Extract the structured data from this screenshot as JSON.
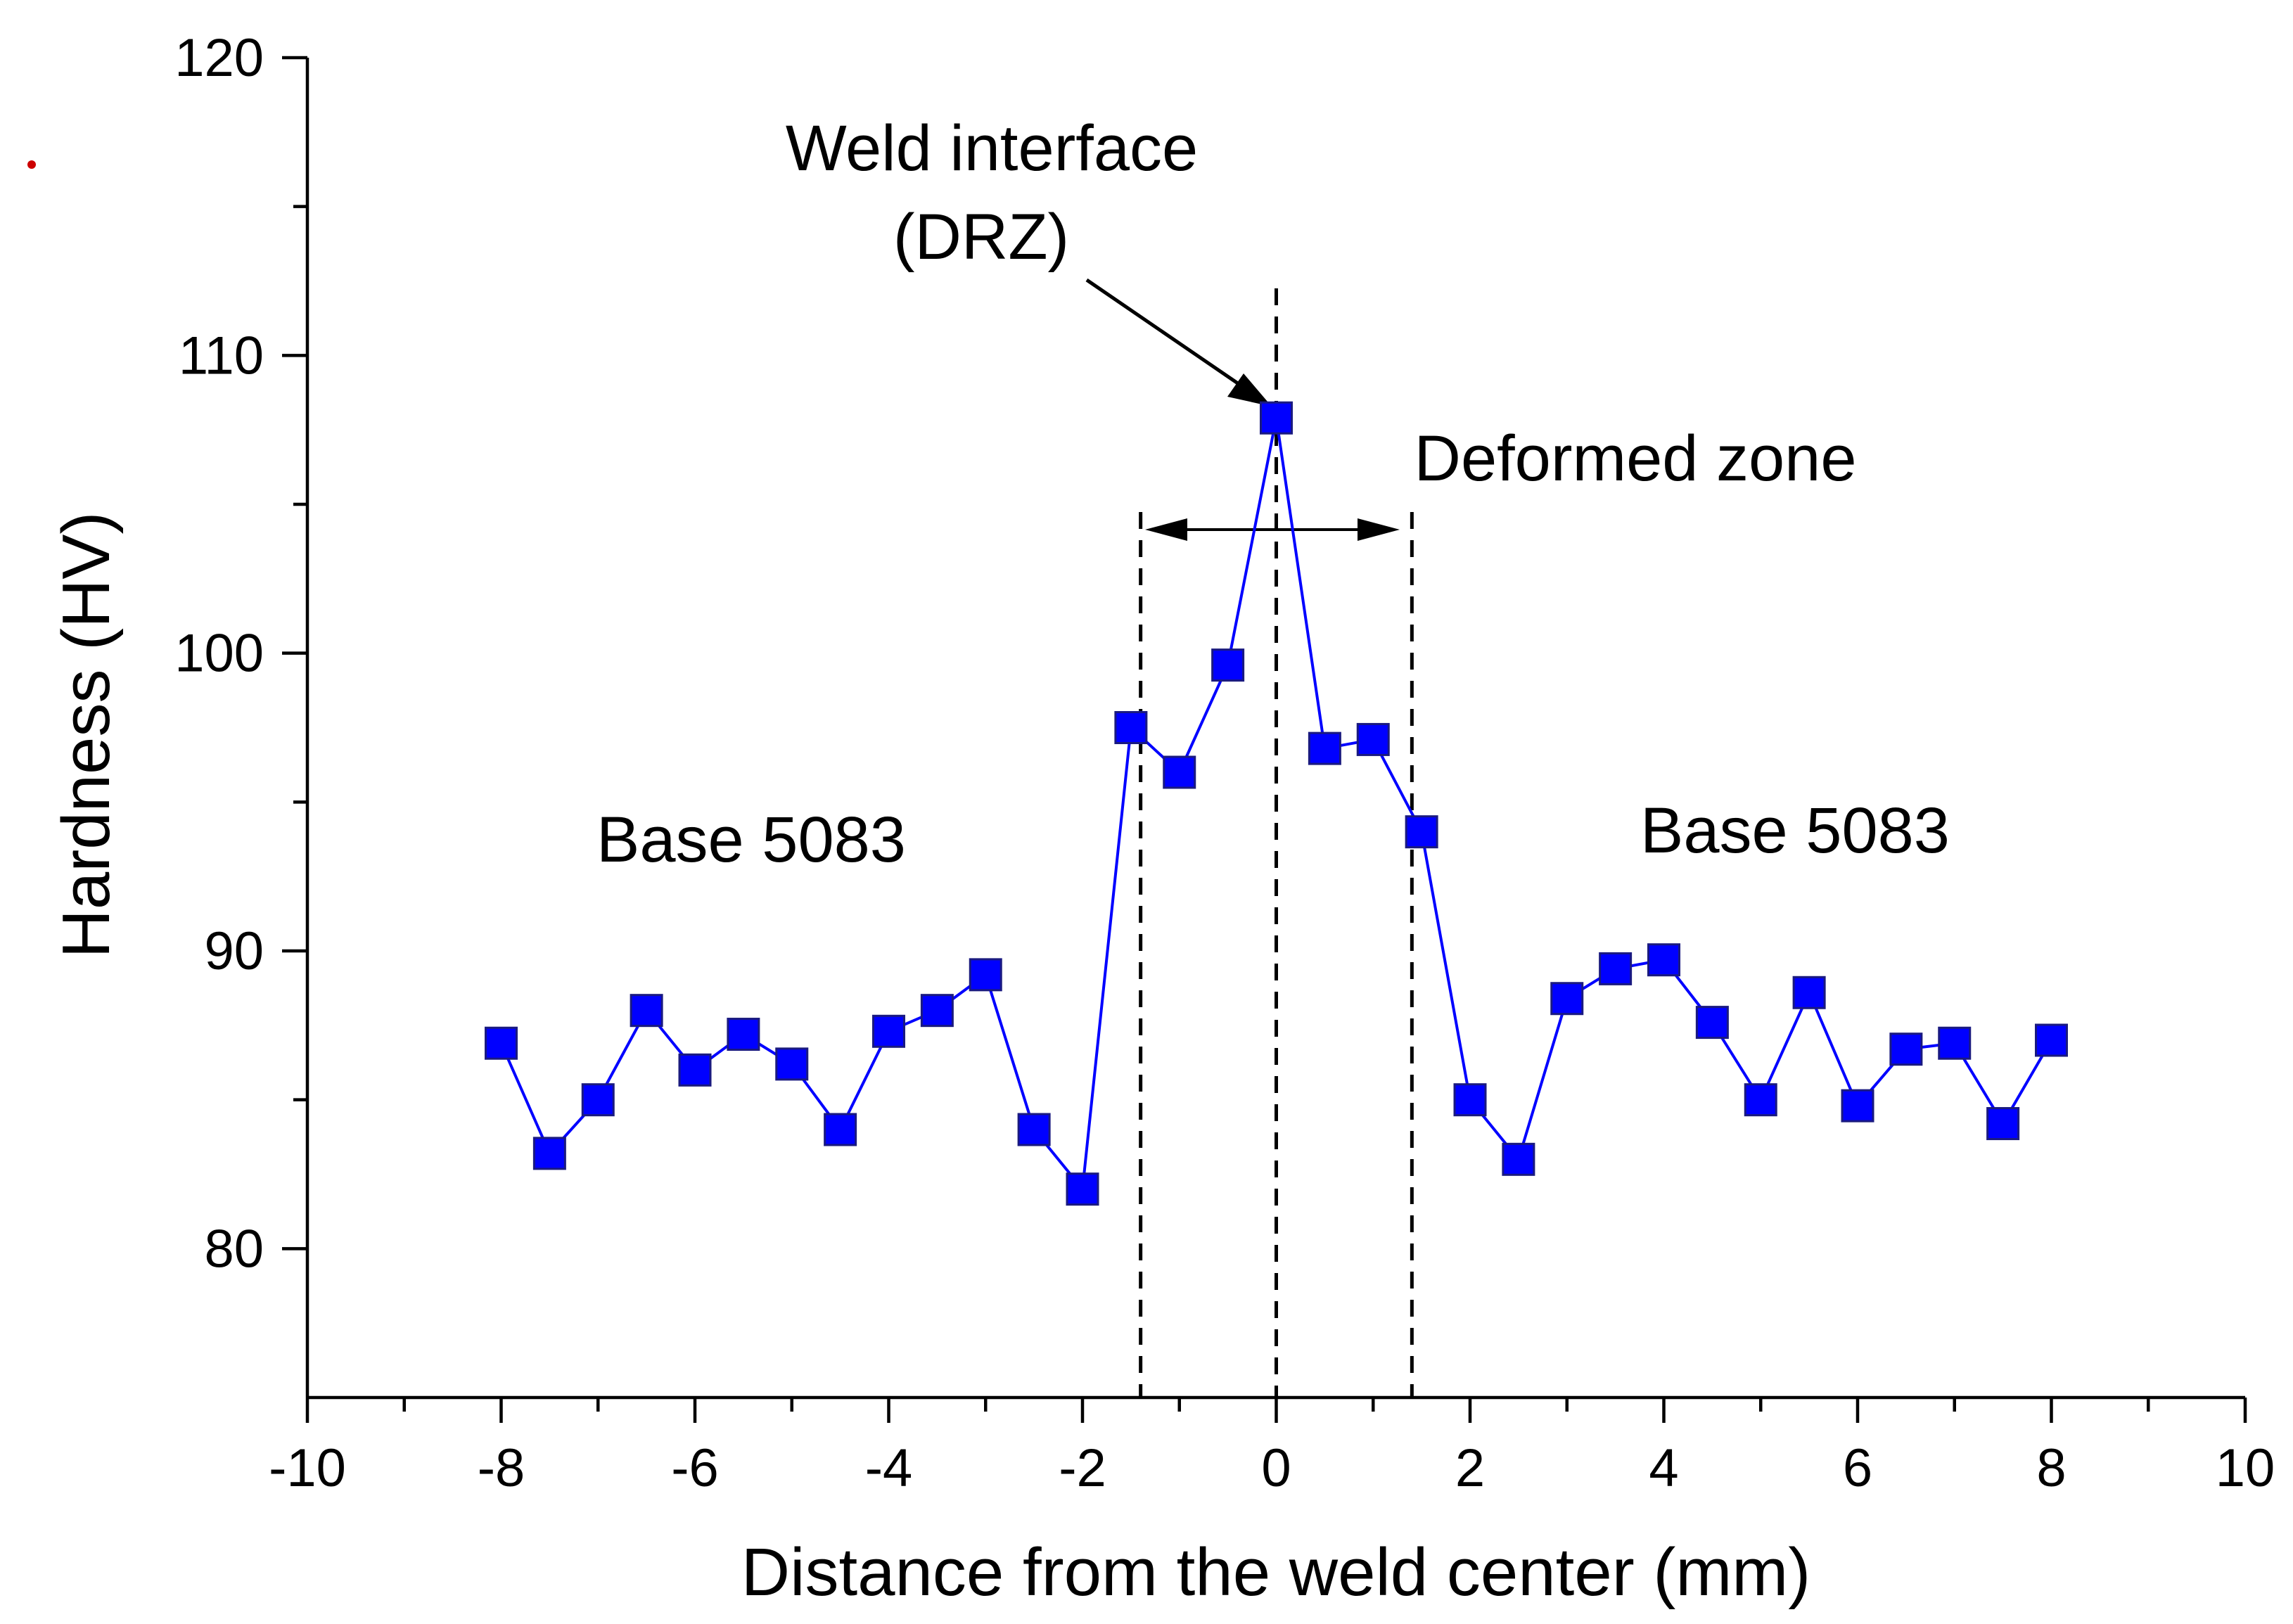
{
  "chart_data": {
    "type": "line",
    "title": "",
    "xlabel": "Distance from the weld center (mm)",
    "ylabel": "Hardness (HV)",
    "xlim": [
      -10,
      10
    ],
    "ylim": [
      75,
      120
    ],
    "x_major_ticks": [
      -10,
      -8,
      -6,
      -4,
      -2,
      0,
      2,
      4,
      6,
      8,
      10
    ],
    "x_tick_labels": [
      "-10",
      "-8",
      "-6",
      "-4",
      "-2",
      "0",
      "2",
      "4",
      "6",
      "8",
      "10"
    ],
    "y_major_ticks": [
      80,
      90,
      100,
      110,
      120
    ],
    "y_tick_labels": [
      "80",
      "90",
      "100",
      "110",
      "120"
    ],
    "grid": false,
    "series": [
      {
        "name": "Hardness",
        "color": "#0000ff",
        "marker": "square",
        "x": [
          -8,
          -7.5,
          -7,
          -6.5,
          -6,
          -5.5,
          -5,
          -4.5,
          -4,
          -3.5,
          -3,
          -2.5,
          -2,
          -1.5,
          -1,
          -0.5,
          0,
          0.5,
          1,
          1.5,
          2,
          2.5,
          3,
          3.5,
          4,
          4.5,
          5,
          5.5,
          6,
          6.5,
          7,
          7.5,
          8
        ],
        "y": [
          86.9,
          83.2,
          85.0,
          88.0,
          86.0,
          87.2,
          86.2,
          84.0,
          87.3,
          88.0,
          89.2,
          84.0,
          82.0,
          97.5,
          96.0,
          99.6,
          107.9,
          96.8,
          97.1,
          94.0,
          85.0,
          83.0,
          88.4,
          89.4,
          89.7,
          87.6,
          85.0,
          88.6,
          84.8,
          86.7,
          86.9,
          84.2,
          87.0
        ]
      }
    ],
    "reference_lines_x": [
      -1.4,
      0,
      1.4
    ],
    "deformed_zone_range": [
      -1.4,
      1.4
    ],
    "annotations": {
      "weld_interface_line1": "Weld interface",
      "weld_interface_line2": "(DRZ)",
      "deformed_zone": "Deformed zone",
      "base_left": "Base 5083",
      "base_right": "Base 5083"
    },
    "colors": {
      "series": "#0000ff",
      "marker_fill": "#0000ff",
      "marker_edge": "#1a1a80",
      "axis": "#000000",
      "stray_dot": "#cc0000"
    }
  }
}
